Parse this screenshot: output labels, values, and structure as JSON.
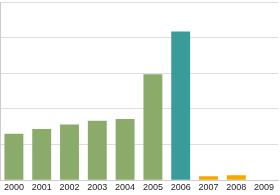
{
  "chart_data": {
    "type": "bar",
    "categories": [
      "2000",
      "2001",
      "2002",
      "2003",
      "2004",
      "2005",
      "2006",
      "2007",
      "2008",
      "2009"
    ],
    "values": [
      1.3,
      1.44,
      1.56,
      1.67,
      1.72,
      2.97,
      4.17,
      0.11,
      0.14,
      0
    ],
    "colors": [
      "#8aab6a",
      "#8aab6a",
      "#8aab6a",
      "#8aab6a",
      "#8aab6a",
      "#8aab6a",
      "#3a9b9b",
      "#f2a900",
      "#f2a900",
      "#f2a900"
    ],
    "ylim": [
      0,
      5
    ],
    "yticks": [
      0,
      1,
      2,
      3,
      4,
      5
    ],
    "grid": true,
    "tick_labels": "x"
  }
}
